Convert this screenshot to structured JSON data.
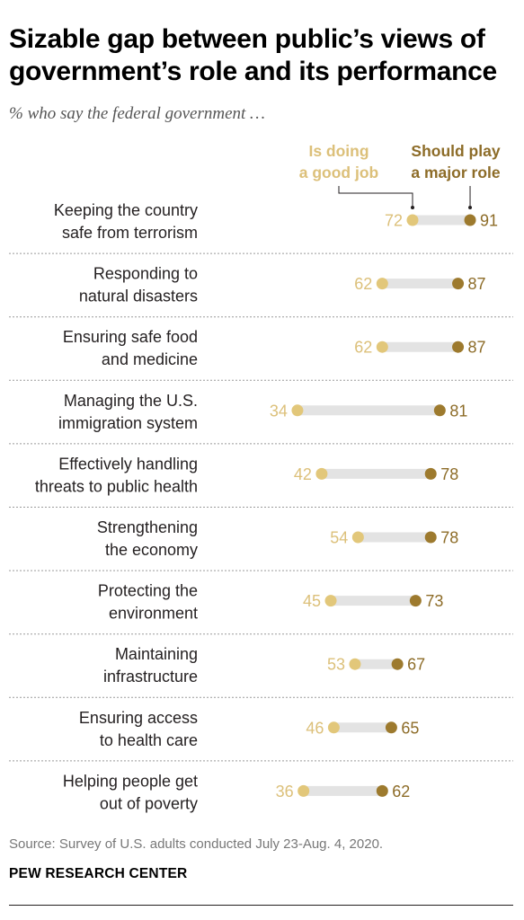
{
  "title": "Sizable gap between public’s views of government’s role and its performance",
  "subtitle": "% who say the federal government …",
  "source": "Source: Survey of U.S. adults conducted July 23-Aug. 4, 2020.",
  "organization": "PEW RESEARCH CENTER",
  "colors": {
    "good_job": "#e2c77a",
    "good_job_text": "#dcc07a",
    "major_role": "#9d7a2e",
    "major_role_text": "#8d6c28",
    "bar": "#e3e3e3",
    "label_text": "#231f20",
    "divider": "#9a9a9a"
  },
  "chart_data": {
    "type": "dot",
    "legend": {
      "good_job": [
        "Is doing",
        "a good job"
      ],
      "major_role": [
        "Should play",
        "a major role"
      ],
      "placement": "top-right"
    },
    "categories": [
      [
        "Keeping the country",
        "safe from terrorism"
      ],
      [
        "Responding to",
        "natural disasters"
      ],
      [
        "Ensuring safe food",
        "and medicine"
      ],
      [
        "Managing the U.S.",
        "immigration system"
      ],
      [
        "Effectively handling",
        "threats to public health"
      ],
      [
        "Strengthening",
        "the economy"
      ],
      [
        "Protecting the",
        "environment"
      ],
      [
        "Maintaining",
        "infrastructure"
      ],
      [
        "Ensuring access",
        "to health care"
      ],
      [
        "Helping people get",
        "out of poverty"
      ]
    ],
    "series": [
      {
        "name": "Is doing a good job",
        "values": [
          72,
          62,
          62,
          34,
          42,
          54,
          45,
          53,
          46,
          36
        ]
      },
      {
        "name": "Should play a major role",
        "values": [
          91,
          87,
          87,
          81,
          78,
          78,
          73,
          67,
          65,
          62
        ]
      }
    ],
    "xlim": [
      0,
      100
    ],
    "grid": false
  }
}
